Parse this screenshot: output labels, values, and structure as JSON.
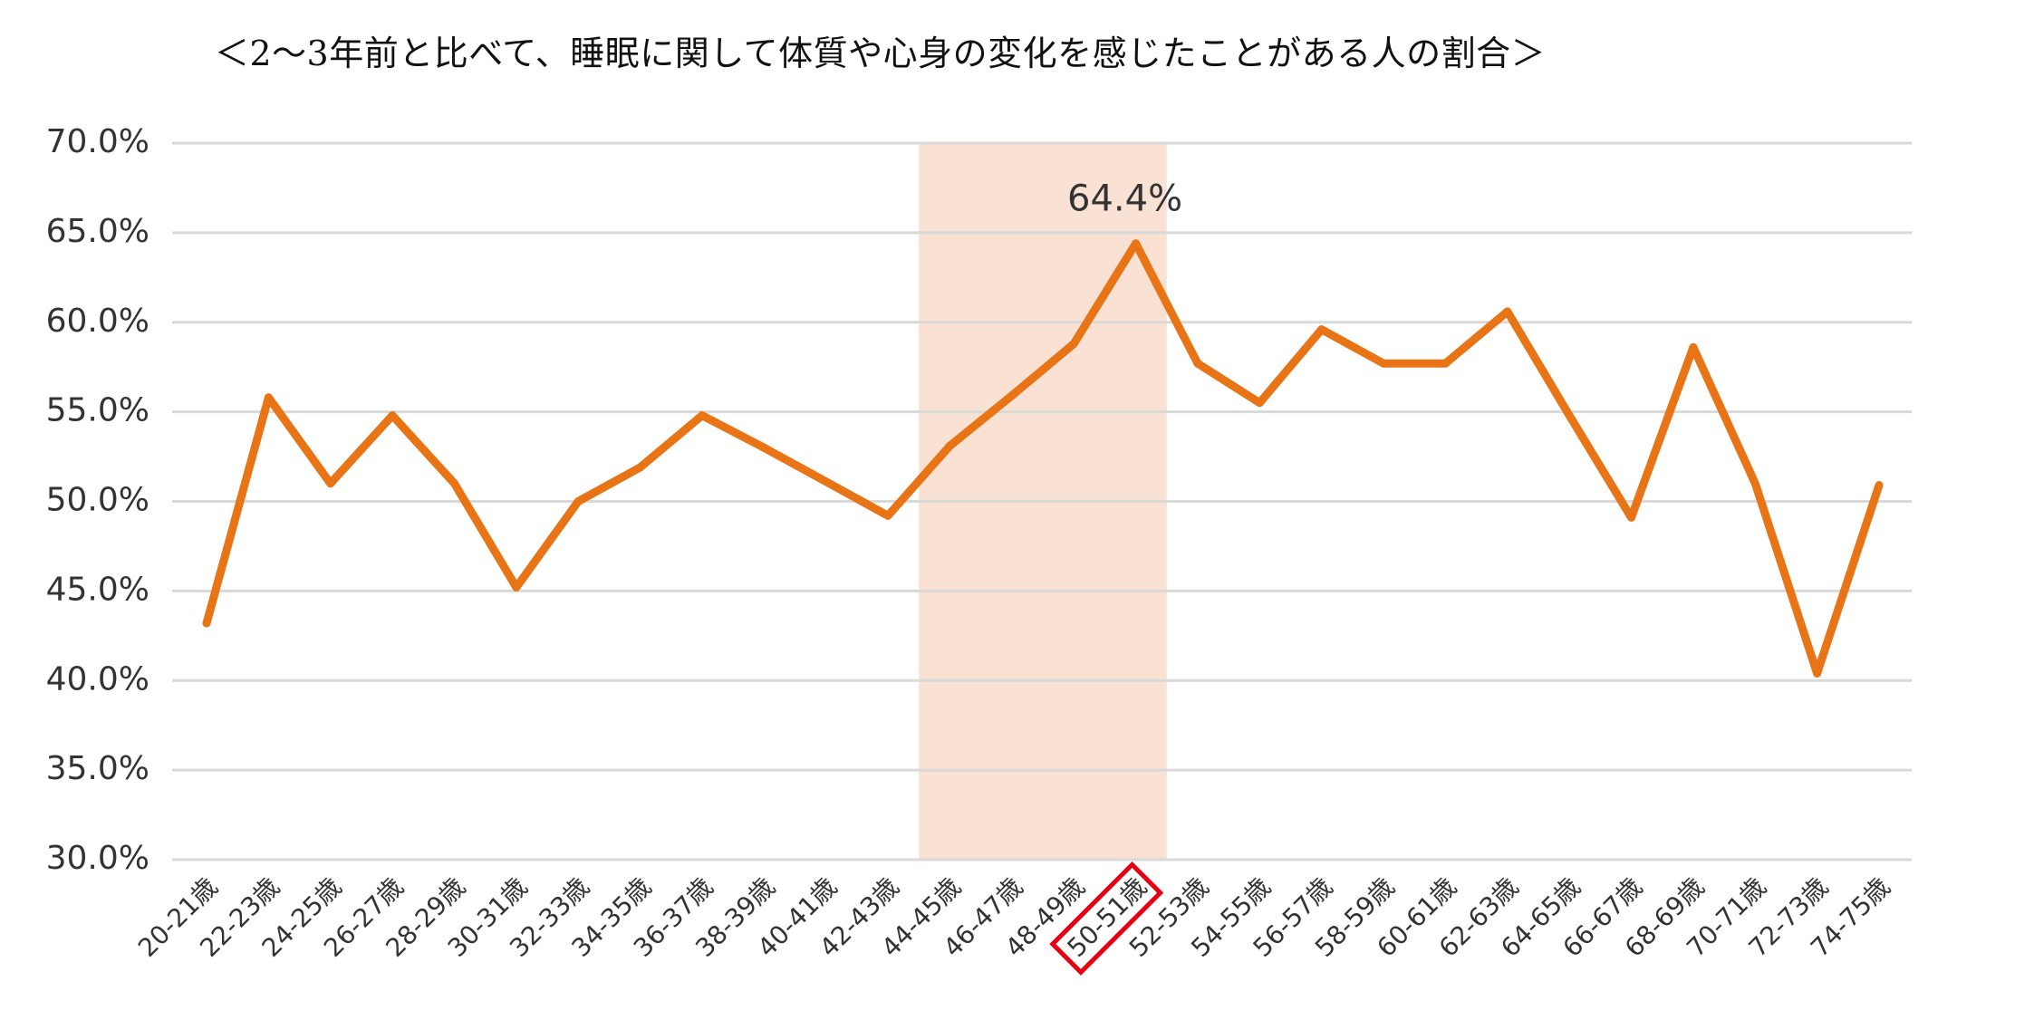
{
  "chart_data": {
    "type": "line",
    "title": "＜2～3年前と比べて、睡眠に関して体質や心身の変化を感じたことがある人の割合＞",
    "xlabel": "",
    "ylabel": "",
    "ylim": [
      30,
      70
    ],
    "y_ticks": [
      "30.0%",
      "35.0%",
      "40.0%",
      "45.0%",
      "50.0%",
      "55.0%",
      "60.0%",
      "65.0%",
      "70.0%"
    ],
    "grid": true,
    "categories": [
      "20-21歳",
      "22-23歳",
      "24-25歳",
      "26-27歳",
      "28-29歳",
      "30-31歳",
      "32-33歳",
      "34-35歳",
      "36-37歳",
      "38-39歳",
      "40-41歳",
      "42-43歳",
      "44-45歳",
      "46-47歳",
      "48-49歳",
      "50-51歳",
      "52-53歳",
      "54-55歳",
      "56-57歳",
      "58-59歳",
      "60-61歳",
      "62-63歳",
      "64-65歳",
      "66-67歳",
      "68-69歳",
      "70-71歳",
      "72-73歳",
      "74-75歳"
    ],
    "series": [
      {
        "values": [
          43.2,
          55.8,
          51.0,
          54.8,
          51.0,
          45.2,
          50.0,
          51.9,
          54.8,
          53.0,
          51.1,
          49.2,
          53.1,
          55.9,
          58.8,
          64.4,
          57.7,
          55.5,
          59.6,
          57.7,
          57.7,
          60.6,
          54.8,
          49.1,
          58.6,
          51.0,
          40.4,
          50.9
        ],
        "color": "#e87415"
      }
    ],
    "annotations": [
      {
        "category": "50-51歳",
        "text": "64.4%"
      }
    ],
    "highlight_band": {
      "from": "44-45歳",
      "to": "50-51歳",
      "color": "#f9e1d3"
    },
    "highlight_label": {
      "category": "50-51歳",
      "color": "#e60012"
    }
  }
}
